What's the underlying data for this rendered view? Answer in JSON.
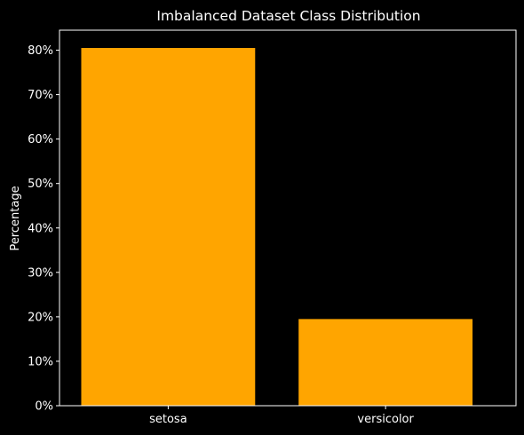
{
  "chart_data": {
    "type": "bar",
    "title": "Imbalanced Dataset Class Distribution",
    "xlabel": "",
    "ylabel": "Percentage",
    "categories": [
      "setosa",
      "versicolor"
    ],
    "values": [
      80.5,
      19.5
    ],
    "ylim": [
      0,
      84.5
    ],
    "yticks": [
      0,
      10,
      20,
      30,
      40,
      50,
      60,
      70,
      80
    ],
    "ytick_labels": [
      "0%",
      "10%",
      "20%",
      "30%",
      "40%",
      "50%",
      "60%",
      "70%",
      "80%"
    ],
    "bar_color": "#FFA500",
    "background_color": "#000000",
    "foreground_color": "#FFFFFF",
    "grid": false,
    "legend": false
  }
}
